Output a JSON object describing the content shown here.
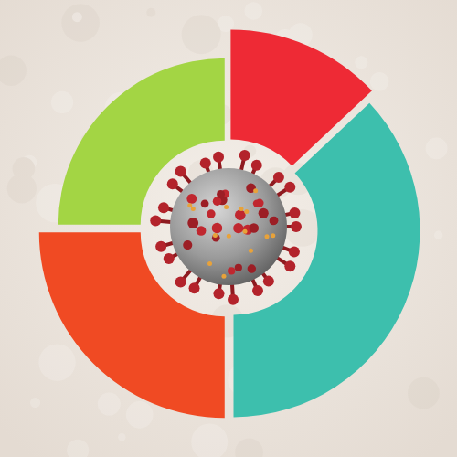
{
  "chart_data": {
    "type": "donut",
    "values": [
      13,
      37,
      25,
      25
    ],
    "colors": [
      "#ee2a35",
      "#3dbfad",
      "#f04a23",
      "#a3d544"
    ]
  }
}
